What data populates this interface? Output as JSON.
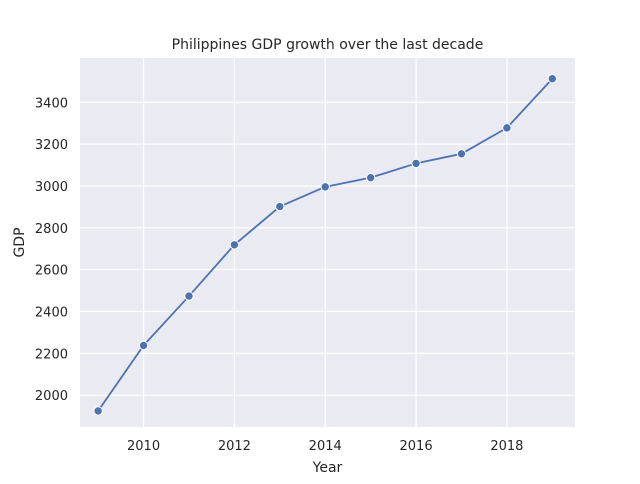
{
  "chart_data": {
    "type": "line",
    "title": "Philippines GDP growth over the last decade",
    "xlabel": "Year",
    "ylabel": "GDP",
    "x": [
      2009,
      2010,
      2011,
      2012,
      2013,
      2014,
      2015,
      2016,
      2017,
      2018,
      2019
    ],
    "series": [
      {
        "values": [
          1925,
          2238,
          2474,
          2719,
          2902,
          2996,
          3040,
          3108,
          3154,
          3278,
          3513
        ]
      }
    ],
    "xlim": [
      2008.6,
      2019.5
    ],
    "ylim": [
      1848,
      3612
    ],
    "xticks": [
      2010,
      2012,
      2014,
      2016,
      2018
    ],
    "yticks": [
      2000,
      2200,
      2400,
      2600,
      2800,
      3000,
      3200,
      3400
    ],
    "grid": true,
    "line_color": "#4c72b0",
    "background_color": "#eaeaf2",
    "grid_color": "#ffffff"
  }
}
